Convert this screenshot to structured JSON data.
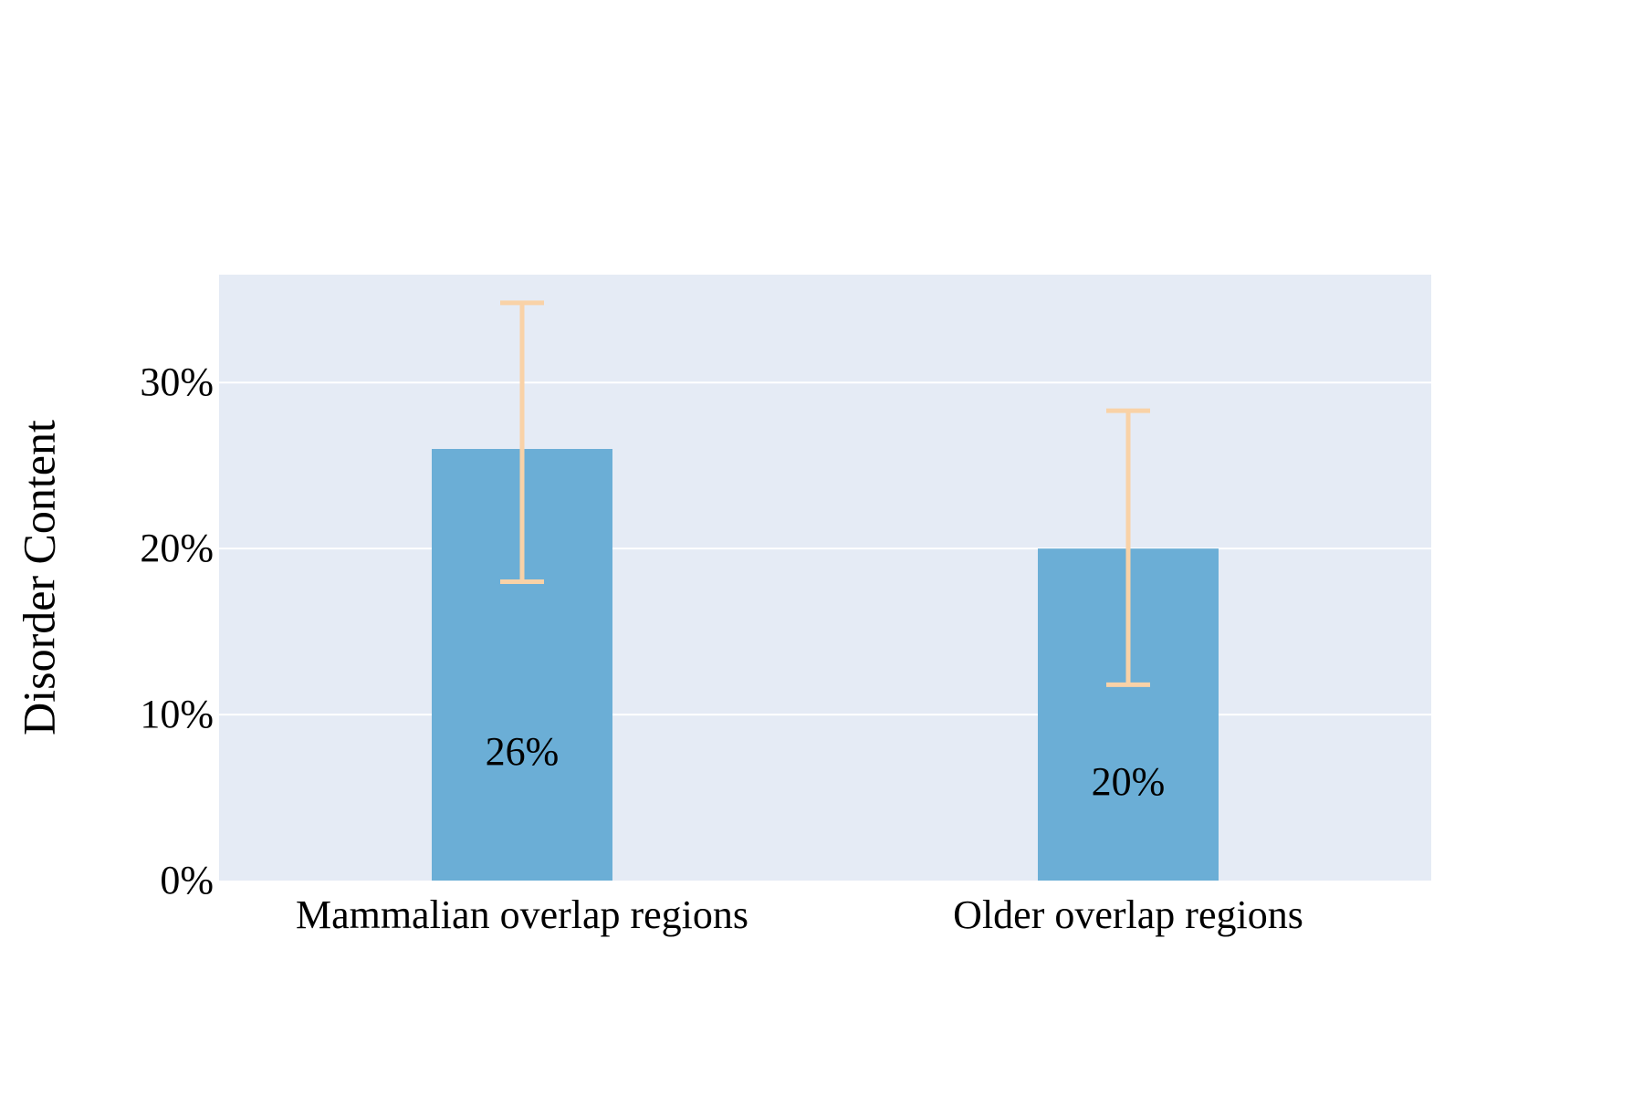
{
  "chart_data": {
    "type": "bar",
    "categories": [
      "Mammalian overlap regions",
      "Older overlap regions"
    ],
    "values": [
      26,
      20
    ],
    "error_bars": [
      {
        "low": 18,
        "high": 34.8
      },
      {
        "low": 11.8,
        "high": 28.3
      }
    ],
    "data_labels": [
      "26%",
      "20%"
    ],
    "title": "",
    "xlabel": "",
    "ylabel": "Disorder Content",
    "ylim": [
      0,
      36.5
    ],
    "yticks": [
      0,
      10,
      20,
      30
    ],
    "ytick_labels": [
      "0%",
      "10%",
      "20%",
      "30%"
    ],
    "grid": true,
    "colors": {
      "plot_background": "#E5EBF5",
      "bar": "#6BAED6",
      "error_bar": "#F9D2A7",
      "grid": "#FFFFFF"
    }
  }
}
